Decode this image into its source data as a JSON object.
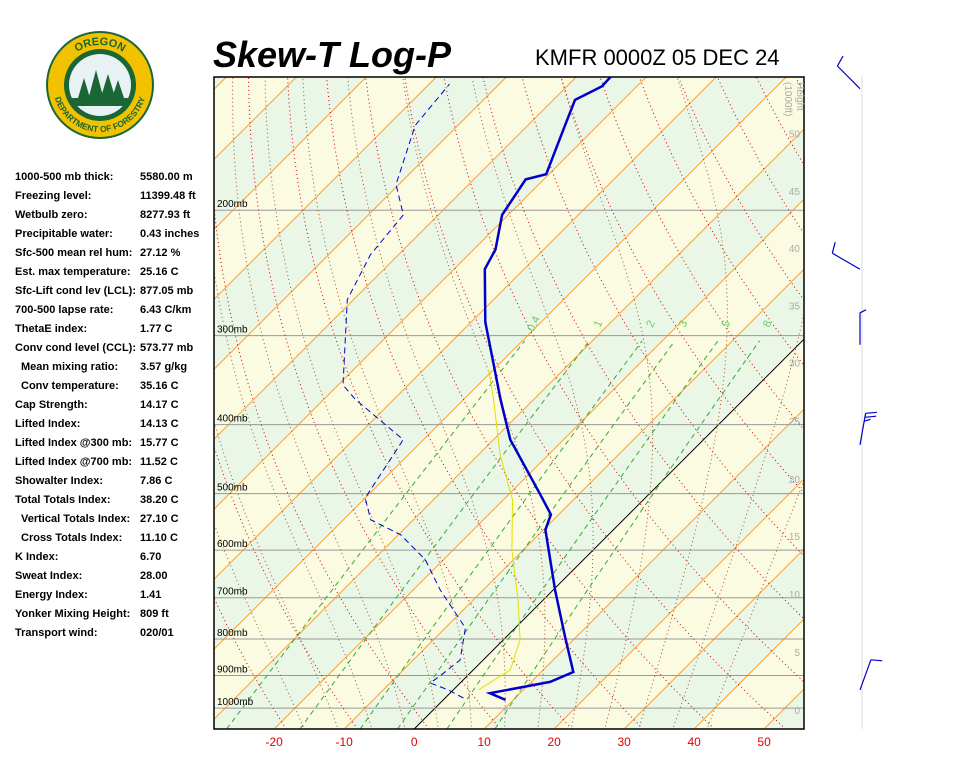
{
  "logo": {
    "top": "OREGON",
    "bottom": "DEPARTMENT OF FORESTRY"
  },
  "indices": [
    {
      "label": "1000-500 mb thick:",
      "value": "5580.00 m"
    },
    {
      "label": "Freezing level:",
      "value": "11399.48 ft"
    },
    {
      "label": "Wetbulb zero:",
      "value": "8277.93 ft"
    },
    {
      "label": "Precipitable water:",
      "value": "0.43 inches"
    },
    {
      "label": "Sfc-500 mean rel hum:",
      "value": "27.12 %"
    },
    {
      "label": "Est. max temperature:",
      "value": "25.16 C"
    },
    {
      "label": "Sfc-Lift cond lev (LCL):",
      "value": "877.05 mb"
    },
    {
      "label": "700-500 lapse rate:",
      "value": "6.43 C/km"
    },
    {
      "label": "ThetaE index:",
      "value": "1.77 C"
    },
    {
      "label": "Conv cond level (CCL):",
      "value": "573.77 mb"
    },
    {
      "label": "Mean mixing ratio:",
      "value": "3.57 g/kg",
      "indent": true
    },
    {
      "label": "Conv temperature:",
      "value": "35.16 C",
      "indent": true
    },
    {
      "label": "Cap Strength:",
      "value": "14.17 C"
    },
    {
      "label": "Lifted Index:",
      "value": "14.13 C"
    },
    {
      "label": "Lifted Index @300 mb:",
      "value": "15.77 C"
    },
    {
      "label": "Lifted Index @700 mb:",
      "value": "11.52 C"
    },
    {
      "label": "Showalter Index:",
      "value": "7.86 C"
    },
    {
      "label": "Total Totals Index:",
      "value": "38.20 C"
    },
    {
      "label": "Vertical Totals Index:",
      "value": "27.10 C",
      "indent": true
    },
    {
      "label": "Cross Totals Index:",
      "value": "11.10 C",
      "indent": true
    },
    {
      "label": "K Index:",
      "value": "6.70"
    },
    {
      "label": "Sweat Index:",
      "value": "28.00"
    },
    {
      "label": "Energy Index:",
      "value": "1.41"
    },
    {
      "label": "Yonker Mixing Height:",
      "value": "809 ft"
    },
    {
      "label": "Transport wind:",
      "value": "020/01"
    }
  ],
  "chart_data": {
    "type": "skew-t",
    "title": "Skew-T Log-P",
    "subtitle": "KMFR 0000Z 05 DEC 24",
    "xlim": [
      -28.6,
      55.7
    ],
    "xticks": [
      -20,
      -10,
      0,
      10,
      20,
      30,
      40,
      50
    ],
    "ylim": [
      1070,
      130
    ],
    "log_scale_y": true,
    "yticks": [
      {
        "value": 200,
        "label": "200mb"
      },
      {
        "value": 300,
        "label": "300mb"
      },
      {
        "value": 400,
        "label": "400mb"
      },
      {
        "value": 500,
        "label": "500mb"
      },
      {
        "value": 600,
        "label": "600mb"
      },
      {
        "value": 700,
        "label": "700mb"
      },
      {
        "value": 800,
        "label": "800mb"
      },
      {
        "value": 900,
        "label": "900mb"
      },
      {
        "value": 1000,
        "label": "1000mb"
      }
    ],
    "height_axis": {
      "label": [
        "Height",
        "(1000ft)"
      ],
      "ticks": [
        50,
        45,
        40,
        35,
        30,
        25,
        20,
        15,
        10,
        5,
        0
      ],
      "pressure": [
        156,
        188,
        226,
        272,
        327,
        395,
        477,
        573,
        692,
        834,
        1006
      ]
    },
    "mixing_ratios": [
      0.4,
      1,
      2,
      3,
      5,
      8
    ],
    "series": [
      {
        "color": "#0000cc",
        "line_style": "solid",
        "line_width": 2.5,
        "pressure": [
          974,
          953,
          919,
          890,
          790,
          683,
          562,
          535,
          502,
          420,
          369,
          287,
          242,
          227,
          203,
          181,
          178,
          152,
          140,
          134,
          130
        ],
        "values": [
          8.9,
          5.7,
          12.7,
          14.6,
          8.1,
          0.3,
          -9.7,
          -11.1,
          -15.4,
          -27.6,
          -34.7,
          -48.0,
          -55.6,
          -56.9,
          -60.9,
          -62.6,
          -60.4,
          -64.7,
          -66.9,
          -65.0,
          -65.1
        ]
      },
      {
        "color": "#0000cc",
        "line_style": "dashed",
        "line_width": 1,
        "pressure": [
          968,
          943,
          922,
          902,
          856,
          772,
          683,
          619,
          571,
          544,
          507,
          420,
          369,
          352,
          267,
          231,
          203,
          184,
          152,
          133
        ],
        "values": [
          2.6,
          -0.7,
          -4.3,
          -3.9,
          -3.3,
          -7.1,
          -16.1,
          -22.6,
          -29.7,
          -36.1,
          -40.0,
          -42.9,
          -55.4,
          -59.3,
          -70.9,
          -74.0,
          -75.0,
          -80.4,
          -86.1,
          -87.1
        ]
      },
      {
        "color": "#e0e000",
        "line_style": "solid",
        "line_width": 1,
        "pressure": [
          943,
          884,
          802,
          705,
          600,
          510,
          441,
          369,
          335
        ],
        "values": [
          3.6,
          5.3,
          2.4,
          -3.6,
          -11.6,
          -18.7,
          -26.9,
          -35.7,
          -40.7
        ]
      }
    ],
    "winds": {
      "pressure": [
        135,
        242,
        309,
        427,
        943
      ],
      "direction": [
        315,
        300,
        0,
        10,
        20
      ],
      "speed": [
        10,
        10,
        5,
        25,
        10
      ]
    }
  }
}
